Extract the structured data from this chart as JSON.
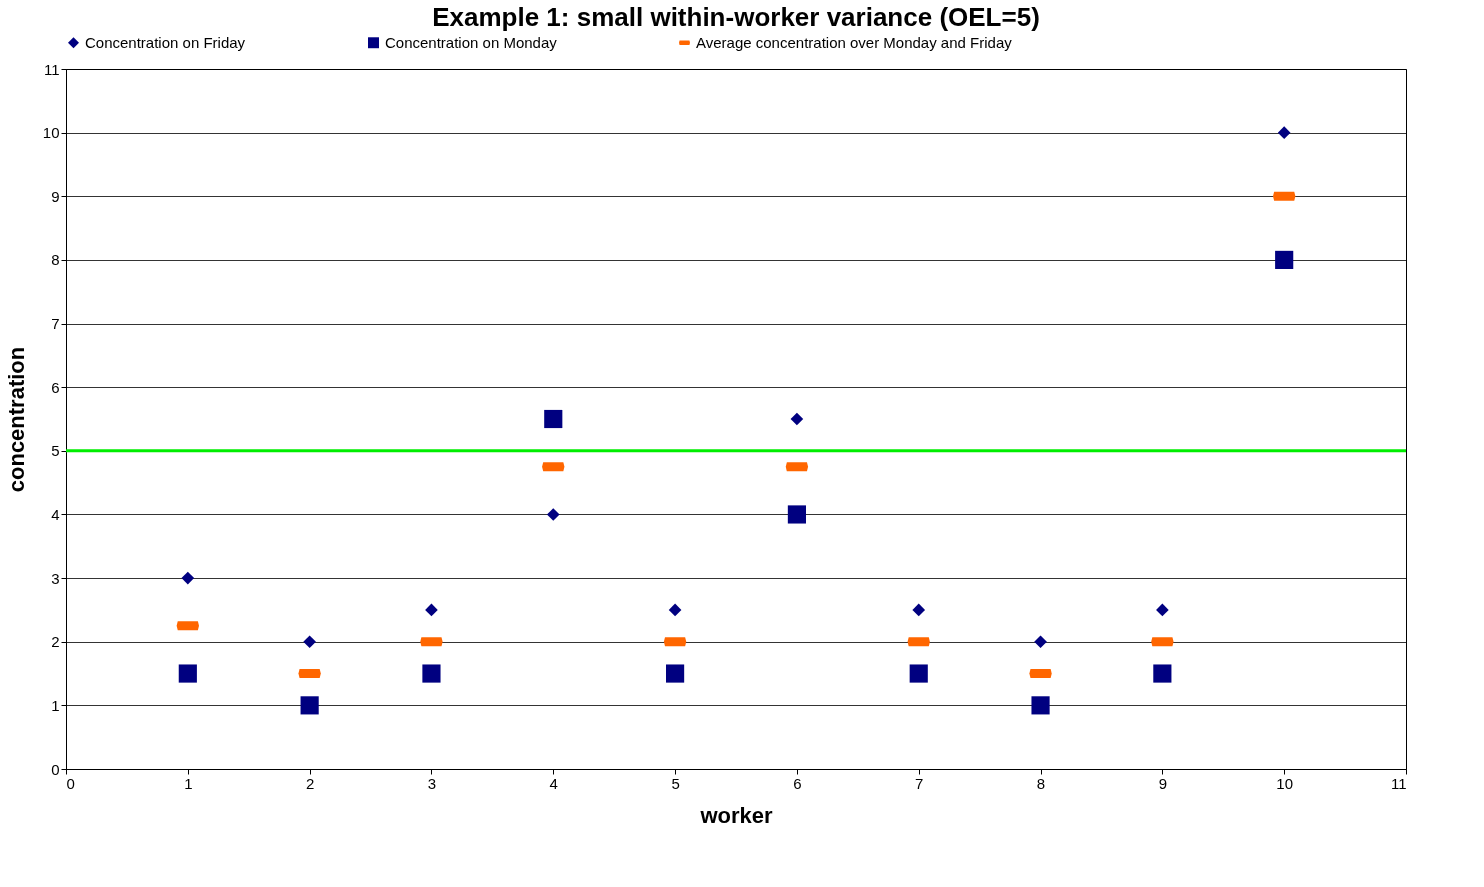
{
  "chart_data": {
    "type": "scatter",
    "title": "Example 1: small within-worker variance (OEL=5)",
    "xlabel": "worker",
    "ylabel": "concentration",
    "x": [
      1,
      2,
      3,
      4,
      5,
      6,
      7,
      8,
      9,
      10
    ],
    "series": [
      {
        "name": "Concentration on Friday",
        "color": "#000080",
        "marker": "diamond",
        "values": [
          3,
          2,
          2.5,
          4,
          2.5,
          5.5,
          2.5,
          2,
          2.5,
          10
        ]
      },
      {
        "name": "Concentration on Monday",
        "color": "#000080",
        "marker": "square",
        "values": [
          1.5,
          1,
          1.5,
          5.5,
          1.5,
          4,
          1.5,
          1,
          1.5,
          8
        ]
      },
      {
        "name": "Average concentration over Monday and Friday",
        "color": "#ff6600",
        "values": [
          2.25,
          1.5,
          2,
          4.75,
          2,
          4.75,
          2,
          1.5,
          2,
          9
        ]
      }
    ],
    "xlim": [
      0,
      11
    ],
    "xticks": [
      0,
      1,
      2,
      3,
      4,
      5,
      6,
      7,
      8,
      9,
      10,
      11
    ],
    "ylim": [
      0,
      11
    ],
    "yticks": [
      0,
      1,
      2,
      3,
      4,
      5,
      6,
      7,
      8,
      9,
      10,
      11
    ],
    "ref_lines": [
      {
        "axis": "y",
        "value": 5,
        "color": "#00ee00"
      }
    ],
    "grid": "y",
    "legend": "top"
  }
}
